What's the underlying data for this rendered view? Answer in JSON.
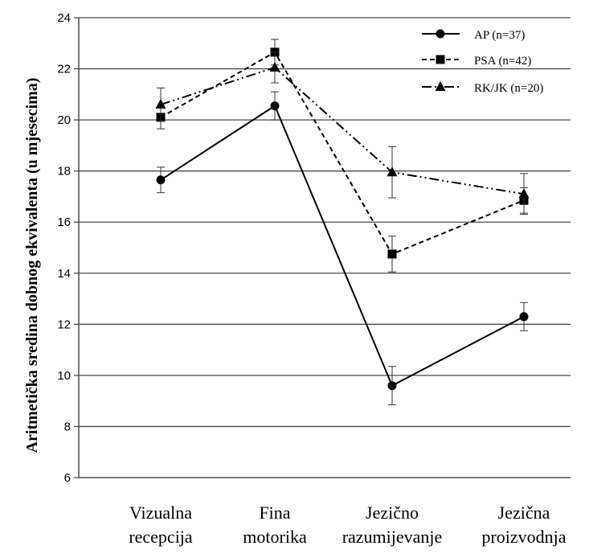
{
  "chart_data": {
    "type": "line",
    "ylabel": "Aritmetička sredina dobnog ekvivalenta (u mjesecima)",
    "xlabel": "",
    "ylim": [
      6,
      24
    ],
    "yticks": [
      6,
      8,
      10,
      12,
      14,
      16,
      18,
      20,
      22,
      24
    ],
    "grid": true,
    "legend_position": "top-right",
    "categories": [
      [
        "Vizualna",
        "recepcija"
      ],
      [
        "Fina",
        "motorika"
      ],
      [
        "Jezično",
        "razumijevanje"
      ],
      [
        "Jezična",
        "proizvodnja"
      ]
    ],
    "series": [
      {
        "name": "AP (n=37)",
        "values": [
          17.65,
          20.55,
          9.6,
          12.3
        ],
        "error": [
          0.5,
          0.55,
          0.75,
          0.55
        ],
        "marker": "circle",
        "line_style": "solid"
      },
      {
        "name": "PSA (n=42)",
        "values": [
          20.1,
          22.65,
          14.75,
          16.85
        ],
        "error": [
          0.45,
          0.5,
          0.7,
          0.5
        ],
        "marker": "square",
        "line_style": "dashed"
      },
      {
        "name": "RK/JK (n=20)",
        "values": [
          20.6,
          22.05,
          17.95,
          17.1
        ],
        "error": [
          0.65,
          0.6,
          1.0,
          0.8
        ],
        "marker": "triangle",
        "line_style": "dash-dot-dot"
      }
    ]
  }
}
